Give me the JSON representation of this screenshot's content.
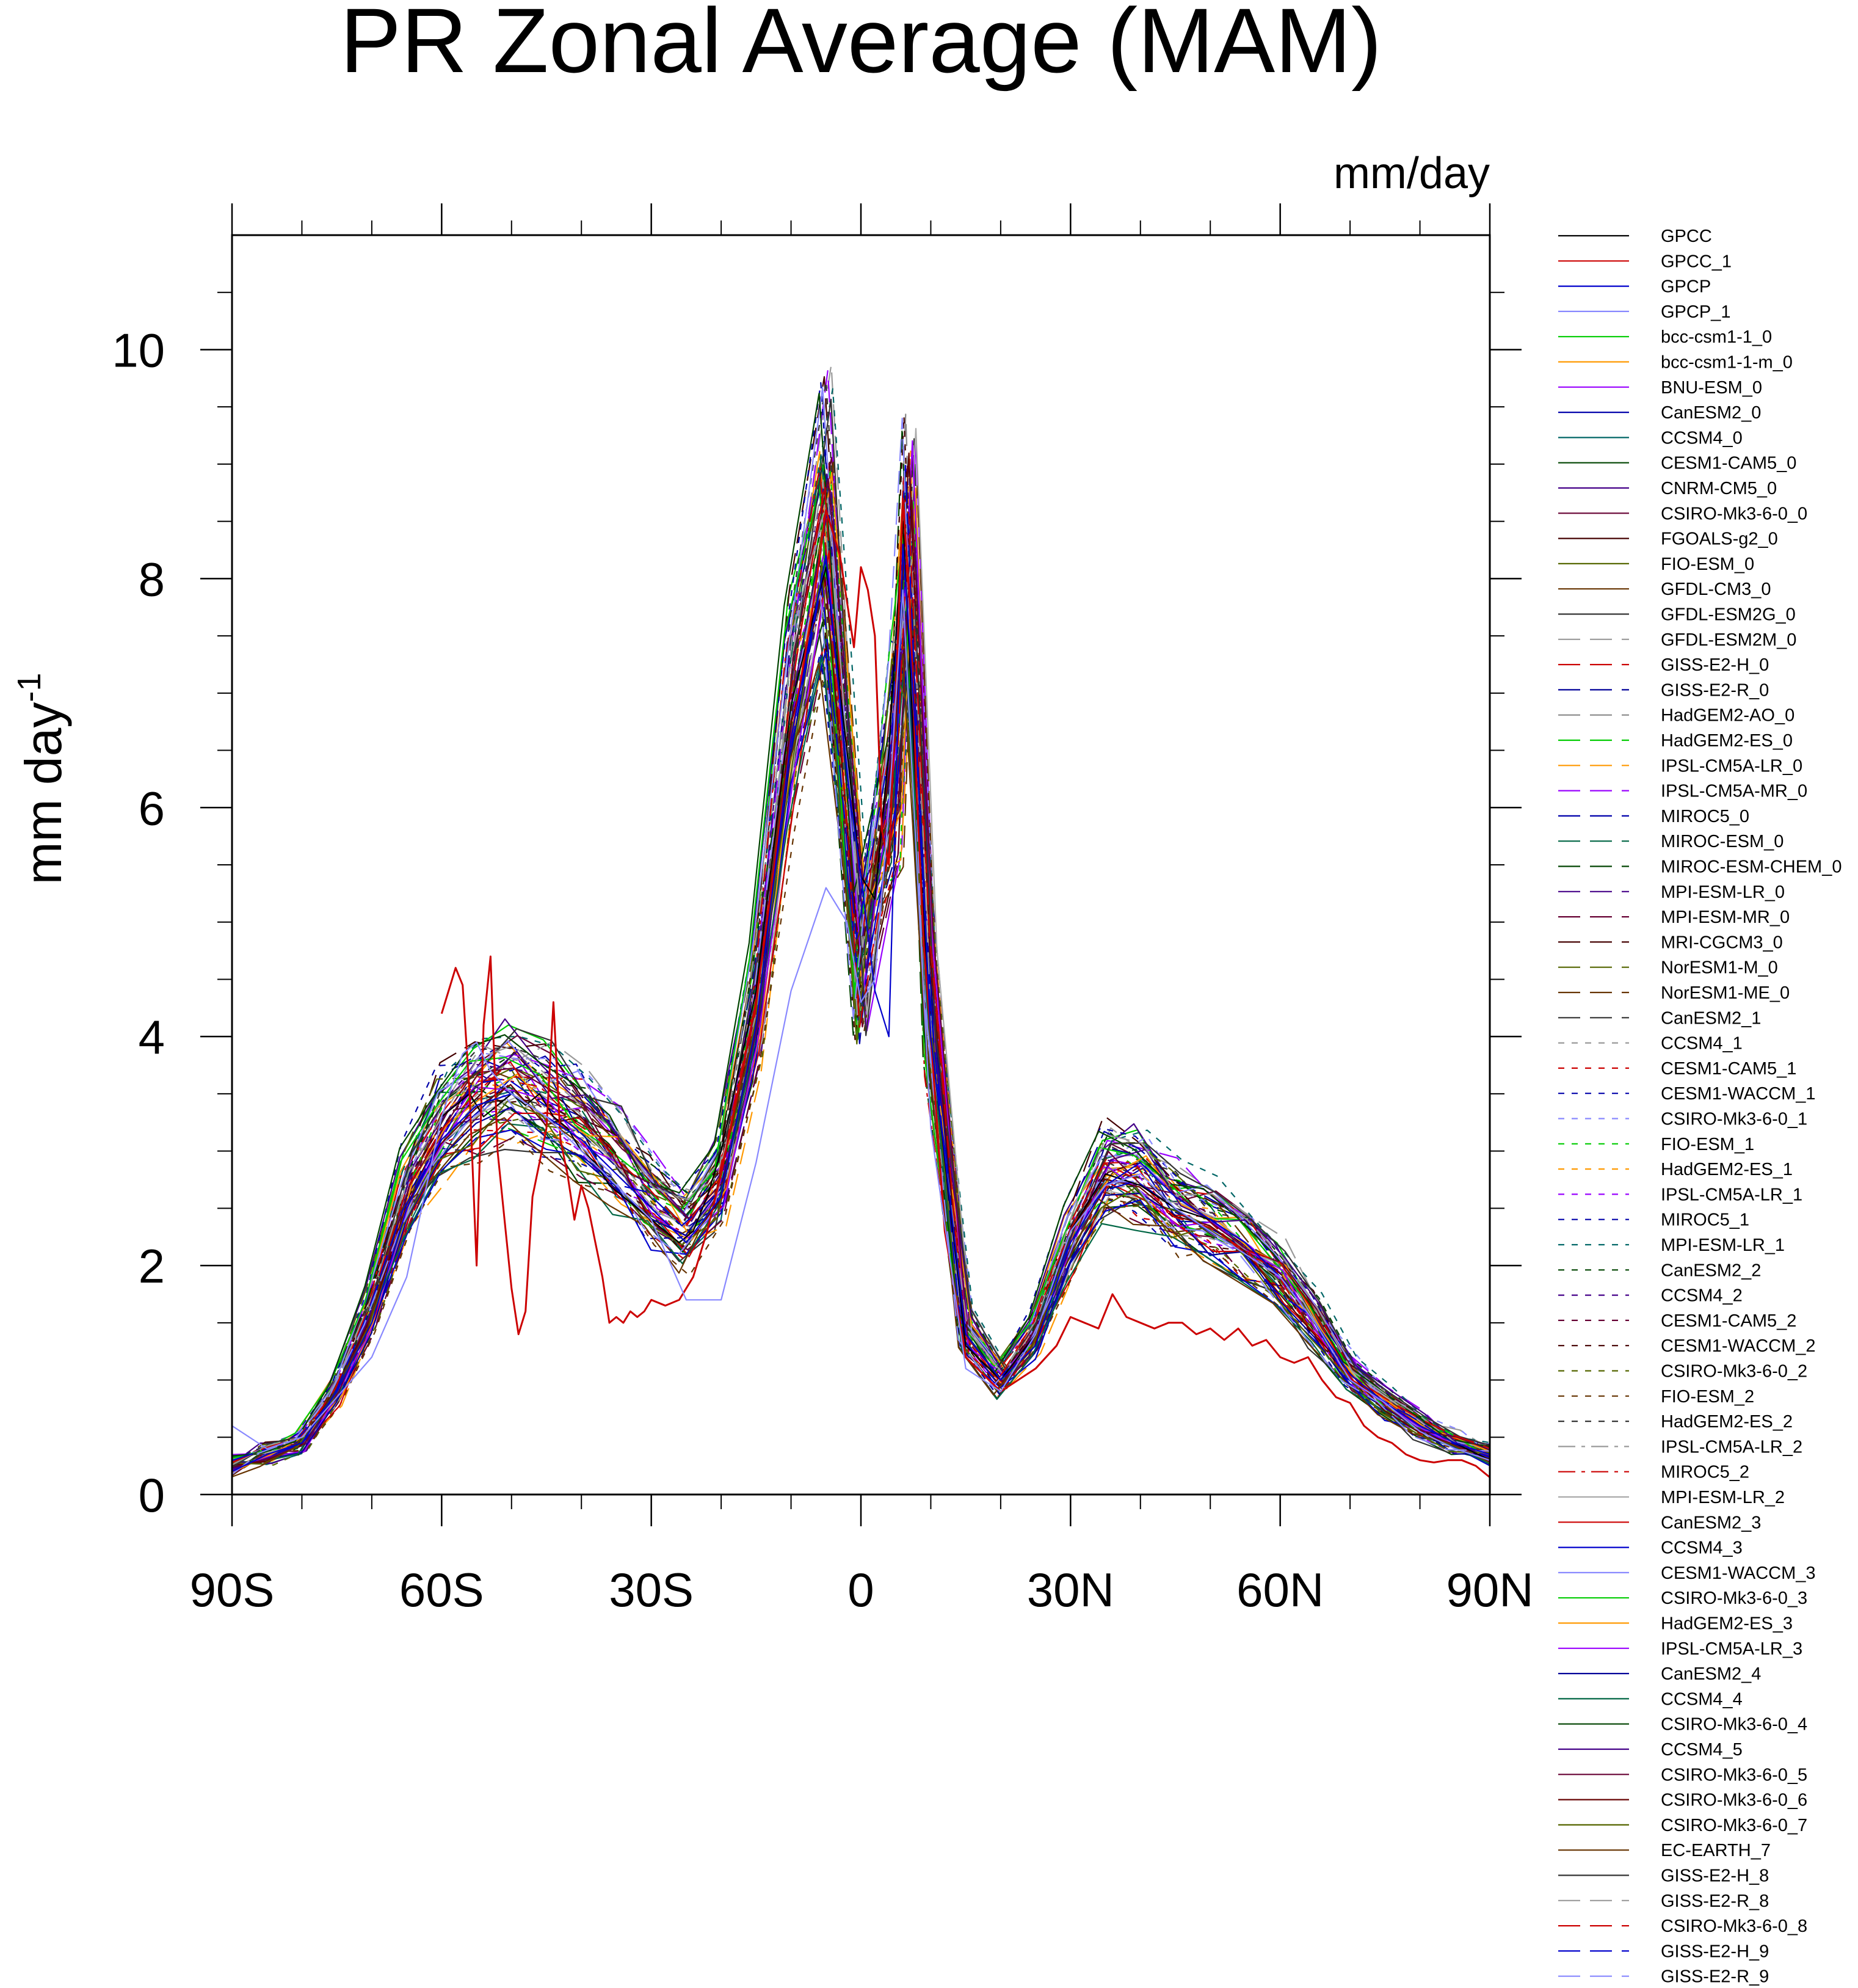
{
  "chart_data": {
    "type": "line",
    "title": "PR Zonal Average (MAM)",
    "units": "mm/day",
    "ylabel": "mm day",
    "ylabel_superscript": "-1",
    "xlabel": "",
    "xlim": [
      -90,
      90
    ],
    "ylim": [
      0,
      11
    ],
    "xticks": [
      {
        "value": -90,
        "label": "90S"
      },
      {
        "value": -60,
        "label": "60S"
      },
      {
        "value": -30,
        "label": "30S"
      },
      {
        "value": 0,
        "label": "0"
      },
      {
        "value": 30,
        "label": "30N"
      },
      {
        "value": 60,
        "label": "60N"
      },
      {
        "value": 90,
        "label": "90N"
      }
    ],
    "yticks": [
      {
        "value": 0,
        "label": "0"
      },
      {
        "value": 2,
        "label": "2"
      },
      {
        "value": 4,
        "label": "4"
      },
      {
        "value": 6,
        "label": "6"
      },
      {
        "value": 8,
        "label": "8"
      },
      {
        "value": 10,
        "label": "10"
      }
    ],
    "x": [
      -90,
      -85,
      -80,
      -75,
      -70,
      -65,
      -60,
      -55,
      -50,
      -45,
      -40,
      -35,
      -30,
      -25,
      -20,
      -15,
      -10,
      -5,
      0,
      5,
      7,
      10,
      15,
      20,
      25,
      30,
      35,
      40,
      45,
      50,
      55,
      60,
      65,
      70,
      75,
      80,
      85,
      90
    ],
    "base_profile": [
      0.25,
      0.35,
      0.45,
      0.9,
      1.6,
      2.6,
      3.2,
      3.45,
      3.55,
      3.4,
      3.2,
      2.9,
      2.55,
      2.3,
      2.7,
      4.2,
      6.8,
      8.4,
      4.9,
      6.8,
      8.6,
      4.5,
      1.4,
      1.0,
      1.4,
      2.2,
      2.8,
      2.75,
      2.5,
      2.35,
      2.15,
      1.9,
      1.5,
      1.05,
      0.8,
      0.6,
      0.45,
      0.35
    ],
    "legend_position": "right",
    "series": [
      {
        "name": "GPCC",
        "color": "#000000",
        "dash": "solid",
        "obs": "gpcc"
      },
      {
        "name": "GPCC_1",
        "color": "#cc0000",
        "dash": "solid",
        "obs": "gpcc1"
      },
      {
        "name": "GPCP",
        "color": "#0000cc",
        "dash": "solid",
        "obs": "gpcp"
      },
      {
        "name": "GPCP_1",
        "color": "#8888ff",
        "dash": "solid",
        "obs": "gpcp1"
      },
      {
        "name": "bcc-csm1-1_0",
        "color": "#00cc00",
        "dash": "solid"
      },
      {
        "name": "bcc-csm1-1-m_0",
        "color": "#ff9900",
        "dash": "solid"
      },
      {
        "name": "BNU-ESM_0",
        "color": "#9900ff",
        "dash": "solid"
      },
      {
        "name": "CanESM2_0",
        "color": "#0000aa",
        "dash": "solid"
      },
      {
        "name": "CCSM4_0",
        "color": "#006666",
        "dash": "solid"
      },
      {
        "name": "CESM1-CAM5_0",
        "color": "#004400",
        "dash": "solid"
      },
      {
        "name": "CNRM-CM5_0",
        "color": "#440088",
        "dash": "solid"
      },
      {
        "name": "CSIRO-Mk3-6-0_0",
        "color": "#660033",
        "dash": "solid"
      },
      {
        "name": "FGOALS-g2_0",
        "color": "#440000",
        "dash": "solid"
      },
      {
        "name": "FIO-ESM_0",
        "color": "#556600",
        "dash": "solid"
      },
      {
        "name": "GFDL-CM3_0",
        "color": "#663300",
        "dash": "solid"
      },
      {
        "name": "GFDL-ESM2G_0",
        "color": "#333333",
        "dash": "solid"
      },
      {
        "name": "GFDL-ESM2M_0",
        "color": "#999999",
        "dash": "long"
      },
      {
        "name": "GISS-E2-H_0",
        "color": "#cc0000",
        "dash": "long"
      },
      {
        "name": "GISS-E2-R_0",
        "color": "#000099",
        "dash": "long"
      },
      {
        "name": "HadGEM2-AO_0",
        "color": "#888888",
        "dash": "long"
      },
      {
        "name": "HadGEM2-ES_0",
        "color": "#00cc00",
        "dash": "long"
      },
      {
        "name": "IPSL-CM5A-LR_0",
        "color": "#ff9900",
        "dash": "long"
      },
      {
        "name": "IPSL-CM5A-MR_0",
        "color": "#9900ff",
        "dash": "long"
      },
      {
        "name": "MIROC5_0",
        "color": "#0000aa",
        "dash": "long"
      },
      {
        "name": "MIROC-ESM_0",
        "color": "#006644",
        "dash": "long"
      },
      {
        "name": "MIROC-ESM-CHEM_0",
        "color": "#004400",
        "dash": "long"
      },
      {
        "name": "MPI-ESM-LR_0",
        "color": "#440088",
        "dash": "long"
      },
      {
        "name": "MPI-ESM-MR_0",
        "color": "#660033",
        "dash": "long"
      },
      {
        "name": "MRI-CGCM3_0",
        "color": "#440000",
        "dash": "long"
      },
      {
        "name": "NorESM1-M_0",
        "color": "#556600",
        "dash": "long"
      },
      {
        "name": "NorESM1-ME_0",
        "color": "#663300",
        "dash": "long"
      },
      {
        "name": "CanESM2_1",
        "color": "#333333",
        "dash": "long"
      },
      {
        "name": "CCSM4_1",
        "color": "#999999",
        "dash": "short"
      },
      {
        "name": "CESM1-CAM5_1",
        "color": "#cc0000",
        "dash": "short"
      },
      {
        "name": "CESM1-WACCM_1",
        "color": "#0000aa",
        "dash": "short"
      },
      {
        "name": "CSIRO-Mk3-6-0_1",
        "color": "#8888ff",
        "dash": "short"
      },
      {
        "name": "FIO-ESM_1",
        "color": "#00cc00",
        "dash": "short"
      },
      {
        "name": "HadGEM2-ES_1",
        "color": "#ff9900",
        "dash": "short"
      },
      {
        "name": "IPSL-CM5A-LR_1",
        "color": "#9900ff",
        "dash": "short"
      },
      {
        "name": "MIROC5_1",
        "color": "#0000aa",
        "dash": "short"
      },
      {
        "name": "MPI-ESM-LR_1",
        "color": "#006666",
        "dash": "short"
      },
      {
        "name": "CanESM2_2",
        "color": "#004400",
        "dash": "short"
      },
      {
        "name": "CCSM4_2",
        "color": "#440088",
        "dash": "short"
      },
      {
        "name": "CESM1-CAM5_2",
        "color": "#660033",
        "dash": "short"
      },
      {
        "name": "CESM1-WACCM_2",
        "color": "#440000",
        "dash": "short"
      },
      {
        "name": "CSIRO-Mk3-6-0_2",
        "color": "#556600",
        "dash": "short"
      },
      {
        "name": "FIO-ESM_2",
        "color": "#663300",
        "dash": "short"
      },
      {
        "name": "HadGEM2-ES_2",
        "color": "#333333",
        "dash": "short"
      },
      {
        "name": "IPSL-CM5A-LR_2",
        "color": "#999999",
        "dash": "dashdot"
      },
      {
        "name": "MIROC5_2",
        "color": "#cc0000",
        "dash": "dashdot"
      },
      {
        "name": "MPI-ESM-LR_2",
        "color": "#aaaaaa",
        "dash": "solid"
      },
      {
        "name": "CanESM2_3",
        "color": "#cc0000",
        "dash": "solid"
      },
      {
        "name": "CCSM4_3",
        "color": "#0000cc",
        "dash": "solid"
      },
      {
        "name": "CESM1-WACCM_3",
        "color": "#8888ff",
        "dash": "solid"
      },
      {
        "name": "CSIRO-Mk3-6-0_3",
        "color": "#00cc00",
        "dash": "solid"
      },
      {
        "name": "HadGEM2-ES_3",
        "color": "#ff9900",
        "dash": "solid"
      },
      {
        "name": "IPSL-CM5A-LR_3",
        "color": "#9900ff",
        "dash": "solid"
      },
      {
        "name": "CanESM2_4",
        "color": "#000099",
        "dash": "solid"
      },
      {
        "name": "CCSM4_4",
        "color": "#006644",
        "dash": "solid"
      },
      {
        "name": "CSIRO-Mk3-6-0_4",
        "color": "#004400",
        "dash": "solid"
      },
      {
        "name": "CCSM4_5",
        "color": "#440088",
        "dash": "solid"
      },
      {
        "name": "CSIRO-Mk3-6-0_5",
        "color": "#660033",
        "dash": "solid"
      },
      {
        "name": "CSIRO-Mk3-6-0_6",
        "color": "#660000",
        "dash": "solid"
      },
      {
        "name": "CSIRO-Mk3-6-0_7",
        "color": "#556600",
        "dash": "solid"
      },
      {
        "name": "EC-EARTH_7",
        "color": "#663300",
        "dash": "solid"
      },
      {
        "name": "GISS-E2-H_8",
        "color": "#333333",
        "dash": "solid"
      },
      {
        "name": "GISS-E2-R_8",
        "color": "#999999",
        "dash": "long"
      },
      {
        "name": "CSIRO-Mk3-6-0_8",
        "color": "#cc0000",
        "dash": "long"
      },
      {
        "name": "GISS-E2-H_9",
        "color": "#0000cc",
        "dash": "long"
      },
      {
        "name": "GISS-E2-R_9",
        "color": "#8888ff",
        "dash": "long"
      }
    ],
    "obs_profiles": {
      "gpcc": {
        "x": [
          -60,
          -58,
          -56,
          -54,
          -52,
          -50,
          -48,
          -46,
          -44,
          -42,
          -40,
          -38,
          -36,
          -34,
          -32,
          -30,
          -28,
          -26,
          -24,
          -22,
          -20,
          -15,
          -10,
          -5,
          -2,
          0,
          2,
          4,
          6,
          8,
          10,
          15,
          20,
          25,
          30,
          35,
          40,
          45,
          50,
          55,
          60,
          65,
          70,
          75,
          80,
          85,
          90
        ],
        "y": [
          3.3,
          3.4,
          3.5,
          3.3,
          3.4,
          3.5,
          3.4,
          3.5,
          3.3,
          3.2,
          3.0,
          2.9,
          2.7,
          2.6,
          2.5,
          2.4,
          2.3,
          2.2,
          2.3,
          2.6,
          3.0,
          4.4,
          6.9,
          8.1,
          6.5,
          5.4,
          5.2,
          6.5,
          8.5,
          6.0,
          4.0,
          1.3,
          1.0,
          1.4,
          2.3,
          2.8,
          2.7,
          2.5,
          2.4,
          2.2,
          1.9,
          1.5,
          1.0,
          0.8,
          0.6,
          0.45,
          0.3
        ]
      },
      "gpcc1": {
        "x": [
          -60,
          -58,
          -57,
          -56,
          -55,
          -54,
          -53,
          -52,
          -51,
          -50,
          -49,
          -48,
          -47,
          -46,
          -45,
          -44,
          -43,
          -42,
          -41,
          -40,
          -39,
          -38,
          -37,
          -36,
          -35,
          -34,
          -33,
          -32,
          -31,
          -30,
          -28,
          -26,
          -24,
          -22,
          -20,
          -15,
          -10,
          -7,
          -5,
          -3,
          -2,
          -1,
          0,
          1,
          2,
          3,
          4,
          5,
          6,
          7,
          8,
          9,
          10,
          12,
          15,
          20,
          25,
          28,
          30,
          32,
          34,
          35,
          36,
          38,
          40,
          42,
          44,
          46,
          48,
          50,
          52,
          54,
          56,
          58,
          60,
          62,
          64,
          66,
          68,
          70,
          72,
          74,
          76,
          78,
          80,
          82,
          84,
          86,
          88,
          90
        ],
        "y": [
          4.2,
          4.6,
          4.45,
          3.5,
          2.0,
          4.1,
          4.7,
          3.0,
          2.4,
          1.8,
          1.4,
          1.6,
          2.6,
          2.9,
          3.2,
          4.3,
          3.1,
          2.8,
          2.4,
          2.7,
          2.5,
          2.2,
          1.9,
          1.5,
          1.55,
          1.5,
          1.6,
          1.55,
          1.6,
          1.7,
          1.65,
          1.7,
          1.9,
          2.3,
          2.8,
          4.3,
          6.6,
          7.7,
          8.6,
          8.2,
          7.8,
          7.4,
          8.1,
          7.9,
          7.5,
          5.8,
          5.5,
          7.0,
          8.7,
          7.8,
          6.1,
          4.8,
          4.0,
          2.3,
          1.2,
          0.9,
          1.1,
          1.3,
          1.55,
          1.5,
          1.45,
          1.6,
          1.75,
          1.55,
          1.5,
          1.45,
          1.5,
          1.5,
          1.4,
          1.45,
          1.35,
          1.45,
          1.3,
          1.35,
          1.2,
          1.15,
          1.2,
          1.0,
          0.85,
          0.8,
          0.6,
          0.5,
          0.45,
          0.35,
          0.3,
          0.28,
          0.3,
          0.3,
          0.25,
          0.15
        ]
      },
      "gpcp": {
        "x": [
          -90,
          -85,
          -80,
          -75,
          -70,
          -65,
          -60,
          -55,
          -50,
          -45,
          -40,
          -35,
          -30,
          -25,
          -20,
          -15,
          -10,
          -5,
          -2,
          0,
          2,
          4,
          6,
          8,
          10,
          15,
          20,
          25,
          30,
          35,
          40,
          45,
          50,
          55,
          60,
          65,
          70,
          75,
          80,
          85,
          90
        ],
        "y": [
          0.2,
          0.35,
          0.45,
          0.9,
          1.5,
          2.5,
          3.1,
          3.4,
          3.5,
          3.3,
          3.1,
          2.8,
          2.5,
          2.2,
          2.6,
          4.1,
          6.6,
          8.2,
          6.3,
          5.4,
          4.4,
          4.0,
          8.3,
          6.5,
          4.0,
          1.4,
          1.0,
          1.3,
          2.2,
          2.7,
          2.9,
          2.6,
          2.4,
          2.2,
          1.9,
          1.5,
          1.05,
          0.8,
          0.6,
          0.45,
          0.35
        ]
      },
      "gpcp1": {
        "x": [
          -90,
          -85,
          -80,
          -75,
          -70,
          -65,
          -60,
          -57,
          -55,
          -53,
          -50,
          -45,
          -40,
          -35,
          -30,
          -25,
          -20,
          -15,
          -10,
          -5,
          -2,
          0,
          2,
          4,
          6,
          8,
          10,
          15,
          20,
          25,
          30,
          35,
          40,
          45,
          50,
          55,
          60,
          65,
          70,
          75,
          80,
          85,
          90
        ],
        "y": [
          0.6,
          0.4,
          0.5,
          0.85,
          1.2,
          1.9,
          3.3,
          3.85,
          3.95,
          3.7,
          3.5,
          3.3,
          3.0,
          2.7,
          2.4,
          1.7,
          1.7,
          2.9,
          4.4,
          5.3,
          5.0,
          4.3,
          4.5,
          6.0,
          7.9,
          5.5,
          3.2,
          1.1,
          0.9,
          1.4,
          2.3,
          2.7,
          2.8,
          2.5,
          2.3,
          2.1,
          1.9,
          1.5,
          1.0,
          0.8,
          0.55,
          0.4,
          0.3
        ]
      }
    }
  }
}
